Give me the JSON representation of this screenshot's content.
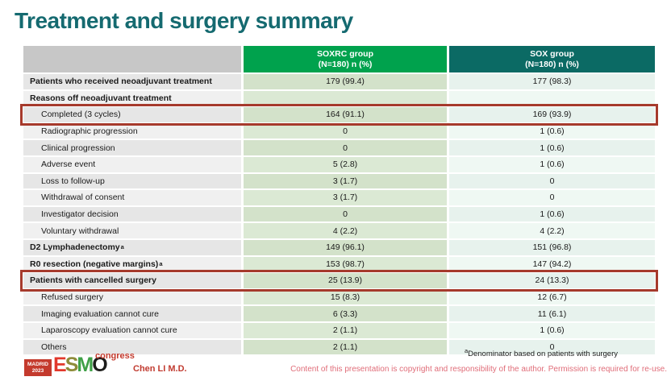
{
  "title": "Treatment and surgery summary",
  "colors": {
    "title": "#156a70",
    "soxrc_header": "#00a24d",
    "sox_header": "#0b6a64",
    "highlight_box": "#a63a2c",
    "author": "#c13b30",
    "copyright": "#e06d79"
  },
  "table": {
    "columns": {
      "soxrc": {
        "line1": "SOXRC group",
        "line2": "(N=180)  n (%)"
      },
      "sox": {
        "line1": "SOX group",
        "line2": "(N=180)  n (%)"
      }
    },
    "rows": [
      {
        "label": "Patients who received neoadjuvant treatment",
        "soxrc": "179 (99.4)",
        "sox": "177 (98.3)"
      },
      {
        "label": "Reasons off neoadjuvant treatment",
        "soxrc": "",
        "sox": ""
      },
      {
        "label": "Completed (3 cycles)",
        "soxrc": "164 (91.1)",
        "sox": "169 (93.9)"
      },
      {
        "label": "Radiographic progression",
        "soxrc": "0",
        "sox": "1 (0.6)"
      },
      {
        "label": "Clinical progression",
        "soxrc": "0",
        "sox": "1 (0.6)"
      },
      {
        "label": "Adverse event",
        "soxrc": "5 (2.8)",
        "sox": "1 (0.6)"
      },
      {
        "label": "Loss to follow-up",
        "soxrc": "3 (1.7)",
        "sox": "0"
      },
      {
        "label": "Withdrawal of consent",
        "soxrc": "3 (1.7)",
        "sox": "0"
      },
      {
        "label": "Investigator decision",
        "soxrc": "0",
        "sox": "1 (0.6)"
      },
      {
        "label": "Voluntary withdrawal",
        "soxrc": "4 (2.2)",
        "sox": "4 (2.2)"
      },
      {
        "label": "D2 Lymphadenectomy",
        "sup": "a",
        "soxrc": "149 (96.1)",
        "sox": "151 (96.8)"
      },
      {
        "label": "R0 resection (negative margins)",
        "sup": "a",
        "soxrc": "153 (98.7)",
        "sox": "147 (94.2)"
      },
      {
        "label": "Patients with cancelled surgery",
        "soxrc": "25 (13.9)",
        "sox": "24 (13.3)"
      },
      {
        "label": "Refused surgery",
        "soxrc": "15 (8.3)",
        "sox": "12 (6.7)"
      },
      {
        "label": "Imaging evaluation cannot cure",
        "soxrc": "6 (3.3)",
        "sox": "11 (6.1)"
      },
      {
        "label": "Laparoscopy evaluation cannot cure",
        "soxrc": "2 (1.1)",
        "sox": "1 (0.6)"
      },
      {
        "label": "Others",
        "soxrc": "2 (1.1)",
        "sox": "0"
      }
    ]
  },
  "footer": {
    "logo": {
      "madrid": "MADRID",
      "year": "2023",
      "e": "E",
      "s": "S",
      "m": "M",
      "o": "O",
      "congress": "congress"
    },
    "author": "Chen LI M.D.",
    "footnote_sup": "a",
    "footnote": "Denominator based on patients with surgery",
    "copyright": "Content of this presentation is copyright and responsibility of the author. Permission is required for re-use."
  }
}
